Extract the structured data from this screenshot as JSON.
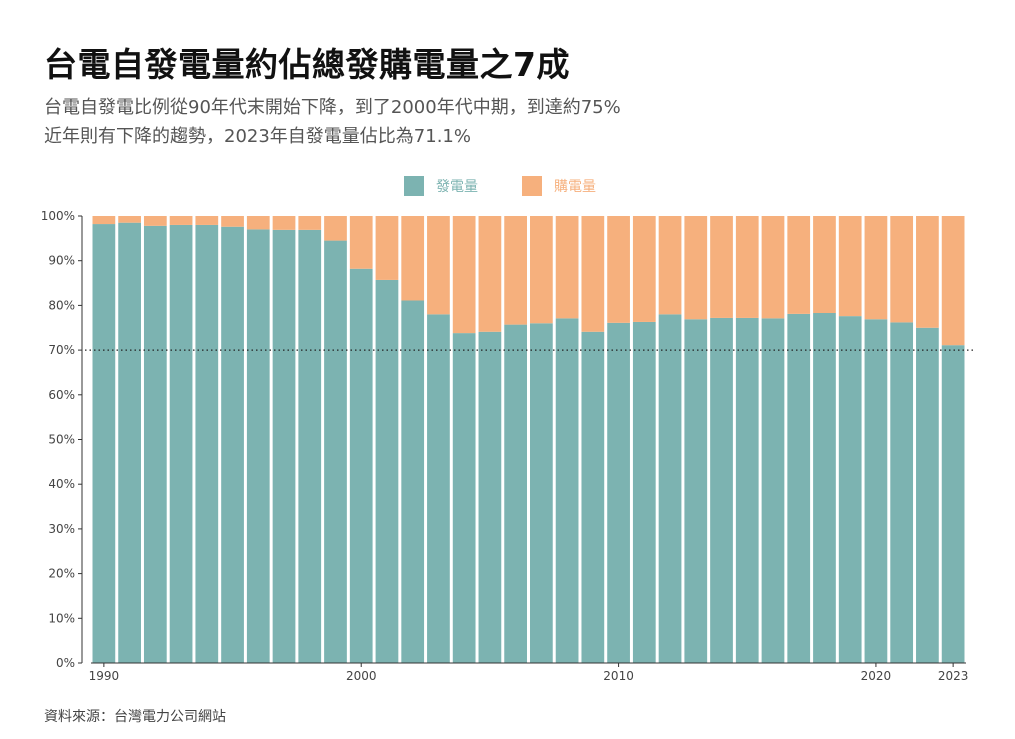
{
  "header": {
    "title": "台電自發電量約佔總發購電量之7成",
    "subtitle_line1": "台電自發電比例從90年代末開始下降，到了2000年代中期，到達約75%",
    "subtitle_line2": "近年則有下降的趨勢，2023年自發電量佔比為71.1%"
  },
  "legend": {
    "items": [
      {
        "label": "發電量",
        "color": "#7cb3b1"
      },
      {
        "label": "購電量",
        "color": "#f6b07d"
      }
    ]
  },
  "source": "資料來源：台灣電力公司網站",
  "chart_data": {
    "type": "bar",
    "stacked": true,
    "percent": true,
    "categories": [
      1990,
      1991,
      1992,
      1993,
      1994,
      1995,
      1996,
      1997,
      1998,
      1999,
      2000,
      2001,
      2002,
      2003,
      2004,
      2005,
      2006,
      2007,
      2008,
      2009,
      2010,
      2011,
      2012,
      2013,
      2014,
      2015,
      2016,
      2017,
      2018,
      2019,
      2020,
      2021,
      2022,
      2023
    ],
    "x_tick_labels": [
      "1990",
      "2000",
      "2010",
      "2020",
      "2023"
    ],
    "x_tick_values": [
      1990,
      2000,
      2010,
      2020,
      2023
    ],
    "series": [
      {
        "name": "發電量",
        "color": "#7cb3b1",
        "values": [
          98.2,
          98.5,
          97.8,
          98.0,
          98.0,
          97.6,
          97.0,
          96.9,
          96.9,
          94.5,
          88.2,
          85.7,
          81.1,
          78.0,
          73.8,
          74.1,
          75.7,
          76.0,
          77.1,
          74.1,
          76.1,
          76.3,
          78.0,
          76.9,
          77.2,
          77.2,
          77.1,
          78.1,
          78.3,
          77.6,
          76.9,
          76.2,
          75.0,
          71.1
        ]
      },
      {
        "name": "購電量",
        "color": "#f6b07d",
        "values": [
          1.8,
          1.5,
          2.2,
          2.0,
          2.0,
          2.4,
          3.0,
          3.1,
          3.1,
          5.5,
          11.8,
          14.3,
          18.9,
          22.0,
          26.2,
          25.9,
          24.3,
          24.0,
          22.9,
          25.9,
          23.9,
          23.7,
          22.0,
          23.1,
          22.8,
          22.8,
          22.9,
          21.9,
          21.7,
          22.4,
          23.1,
          23.8,
          25.0,
          28.9
        ]
      }
    ],
    "y_tick_labels": [
      "0%",
      "10%",
      "20%",
      "30%",
      "40%",
      "50%",
      "60%",
      "70%",
      "80%",
      "90%",
      "100%"
    ],
    "ylim": [
      0,
      100
    ],
    "reference_line": {
      "y": 70,
      "style": "dotted"
    },
    "grid": false,
    "legend_position": "top-center"
  }
}
